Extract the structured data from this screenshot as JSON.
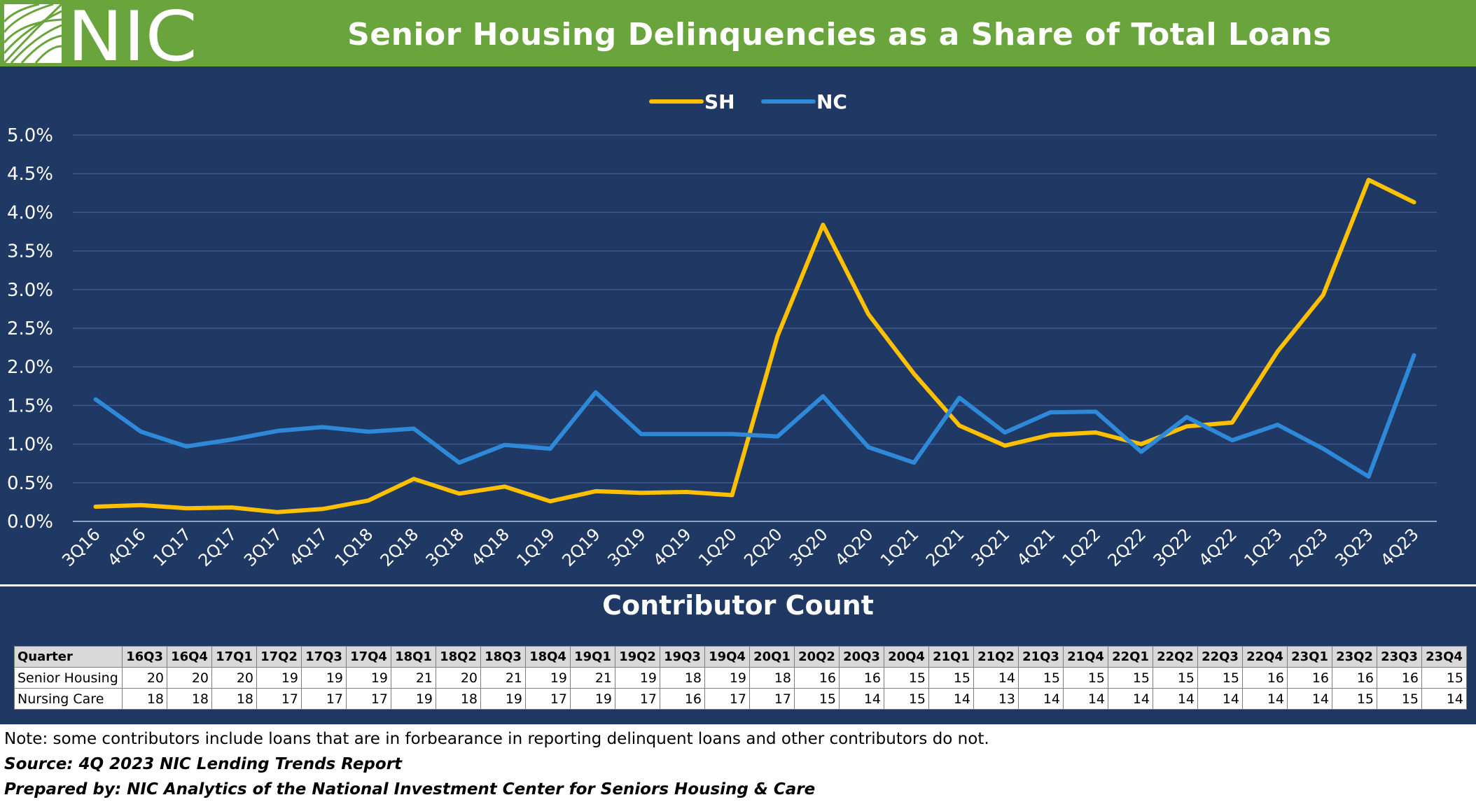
{
  "header": {
    "logo_text": "NIC",
    "title": "Senior Housing Delinquencies as a Share of Total Loans",
    "bg_color": "#6aa43d"
  },
  "chart_data": {
    "type": "line",
    "categories": [
      "3Q16",
      "4Q16",
      "1Q17",
      "2Q17",
      "3Q17",
      "4Q17",
      "1Q18",
      "2Q18",
      "3Q18",
      "4Q18",
      "1Q19",
      "2Q19",
      "3Q19",
      "4Q19",
      "1Q20",
      "2Q20",
      "3Q20",
      "4Q20",
      "1Q21",
      "2Q21",
      "3Q21",
      "4Q21",
      "1Q22",
      "2Q22",
      "3Q22",
      "4Q22",
      "1Q23",
      "2Q23",
      "3Q23",
      "4Q23"
    ],
    "series": [
      {
        "name": "SH",
        "color": "#ffc000",
        "values": [
          0.19,
          0.21,
          0.17,
          0.18,
          0.12,
          0.16,
          0.27,
          0.55,
          0.36,
          0.45,
          0.26,
          0.39,
          0.37,
          0.38,
          0.34,
          2.4,
          3.84,
          2.68,
          1.91,
          1.24,
          0.98,
          1.12,
          1.15,
          1.0,
          1.23,
          1.28,
          2.2,
          2.93,
          4.42,
          4.13
        ]
      },
      {
        "name": "NC",
        "color": "#2e8ad8",
        "values": [
          1.58,
          1.16,
          0.97,
          1.06,
          1.17,
          1.22,
          1.16,
          1.2,
          0.76,
          0.99,
          0.94,
          1.67,
          1.13,
          1.13,
          1.13,
          1.1,
          1.62,
          0.96,
          0.76,
          1.6,
          1.15,
          1.41,
          1.42,
          0.9,
          1.35,
          1.05,
          1.25,
          0.94,
          0.58,
          2.15
        ]
      }
    ],
    "y_ticks": [
      "0.0%",
      "0.5%",
      "1.0%",
      "1.5%",
      "2.0%",
      "2.5%",
      "3.0%",
      "3.5%",
      "4.0%",
      "4.5%",
      "5.0%"
    ],
    "ylim": [
      0,
      5
    ],
    "y_unit": "%",
    "grid": true,
    "legend_position": "top-center"
  },
  "contributor": {
    "title": "Contributor Count",
    "header_label": "Quarter",
    "quarters": [
      "16Q3",
      "16Q4",
      "17Q1",
      "17Q2",
      "17Q3",
      "17Q4",
      "18Q1",
      "18Q2",
      "18Q3",
      "18Q4",
      "19Q1",
      "19Q2",
      "19Q3",
      "19Q4",
      "20Q1",
      "20Q2",
      "20Q3",
      "20Q4",
      "21Q1",
      "21Q2",
      "21Q3",
      "21Q4",
      "22Q1",
      "22Q2",
      "22Q3",
      "22Q4",
      "23Q1",
      "23Q2",
      "23Q3",
      "23Q4"
    ],
    "rows": [
      {
        "label": "Senior Housing",
        "values": [
          20,
          20,
          20,
          19,
          19,
          19,
          21,
          20,
          21,
          19,
          21,
          19,
          18,
          19,
          18,
          16,
          16,
          15,
          15,
          14,
          15,
          15,
          15,
          15,
          15,
          16,
          16,
          16,
          16,
          15
        ]
      },
      {
        "label": "Nursing Care",
        "values": [
          18,
          18,
          18,
          17,
          17,
          17,
          19,
          18,
          19,
          17,
          19,
          17,
          16,
          17,
          17,
          15,
          14,
          15,
          14,
          13,
          14,
          14,
          14,
          14,
          14,
          14,
          14,
          15,
          15,
          14
        ]
      }
    ]
  },
  "notes": {
    "note": "Note: some contributors include loans that are in forbearance in reporting delinquent loans and other contributors do not.",
    "source": "Source: 4Q 2023 NIC Lending Trends Report",
    "prepared": "Prepared by: NIC Analytics of the National Investment Center for Seniors Housing & Care"
  }
}
